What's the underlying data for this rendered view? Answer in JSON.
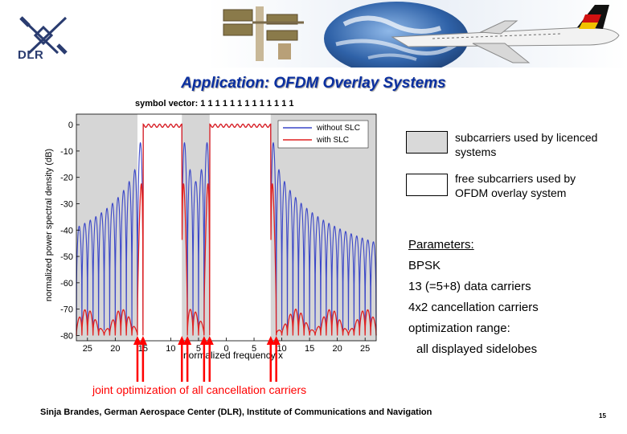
{
  "header": {
    "logo_text": "DLR",
    "title": "Application: OFDM Overlay Systems"
  },
  "chart_data": {
    "type": "line",
    "title": "symbol vector: 1 1 1 1 1 1 1 1 1 1 1 1 1",
    "xlabel": "normalized frequency x",
    "ylabel": "normalized power spectral density (dB)",
    "xlim": [
      -27,
      27
    ],
    "ylim": [
      -82,
      4
    ],
    "x_ticks": [
      -25,
      -20,
      -15,
      -10,
      -5,
      0,
      5,
      10,
      15,
      20,
      25
    ],
    "x_tick_labels": [
      "25",
      "20",
      "15",
      "10",
      "5",
      "0",
      "5",
      "10",
      "15",
      "20",
      "25"
    ],
    "y_ticks": [
      0,
      -10,
      -20,
      -30,
      -40,
      -50,
      -60,
      -70,
      -80
    ],
    "y_tick_labels": [
      "0",
      "-10",
      "-20",
      "-30",
      "-40",
      "-50",
      "-60",
      "-70",
      "-80"
    ],
    "licensed_bands": [
      [
        -27,
        -16
      ],
      [
        -8,
        -3
      ],
      [
        8,
        27
      ]
    ],
    "passbands": [
      [
        -15,
        -8
      ],
      [
        -3,
        8
      ]
    ],
    "series": [
      {
        "name": "without SLC",
        "color": "#3a46c8",
        "sidelobe_peak_db": [
          -5,
          -38
        ],
        "floor_db": -78
      },
      {
        "name": "with SLC",
        "color": "#e02020",
        "sidelobe_peak_db": [
          -70,
          -76
        ],
        "floor_db": -80
      }
    ],
    "legend_position": "top-right",
    "grid": false
  },
  "legend_boxes": {
    "licensed": "subcarriers used by licenced systems",
    "free": "free subcarriers used by OFDM overlay system"
  },
  "parameters": {
    "heading": "Parameters:",
    "lines": [
      "BPSK",
      "13 (=5+8) data carriers",
      "4x2 cancellation carriers",
      "optimization range:",
      "all displayed sidelobes"
    ]
  },
  "annotation": {
    "text": "joint optimization of all cancellation carriers",
    "arrow_color": "#ff0000",
    "arrow_x": [
      -16,
      -15,
      -8,
      -7,
      -4,
      -3,
      8,
      9
    ]
  },
  "footer": {
    "text": "Sinja Brandes, German Aerospace Center (DLR), Institute of Communications and Navigation",
    "page": "15"
  }
}
